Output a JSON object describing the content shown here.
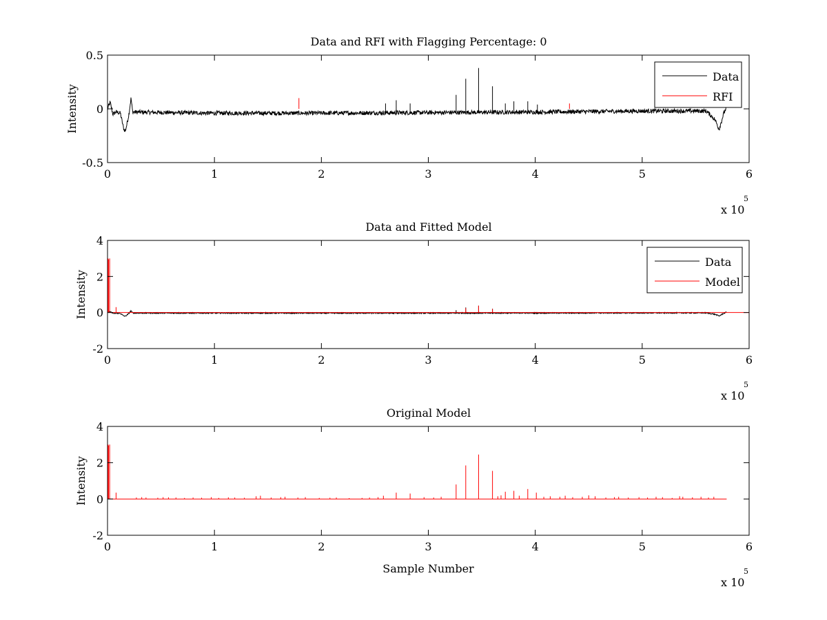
{
  "chart_data": [
    {
      "type": "line",
      "title": "Data and RFI with Flagging Percentage: 0",
      "xlabel": "",
      "ylabel": "Intensity",
      "xlim": [
        0,
        600000
      ],
      "ylim": [
        -0.5,
        0.5
      ],
      "xticks": [
        0,
        100000,
        200000,
        300000,
        400000,
        500000,
        600000
      ],
      "xtick_labels": [
        "0",
        "1",
        "2",
        "3",
        "4",
        "5",
        "6"
      ],
      "yticks": [
        -0.5,
        0,
        0.5
      ],
      "ytick_labels": [
        "-0.5",
        "0",
        "0.5"
      ],
      "x_multiplier_base": "x 10",
      "x_multiplier_exp": "5",
      "legend_position": "top-right",
      "series": [
        {
          "name": "Data",
          "color": "#000000",
          "noise_amplitude": 0.02,
          "baseline": -0.04,
          "points": [
            [
              0,
              0.0
            ],
            [
              2500,
              0.06
            ],
            [
              5000,
              -0.05
            ],
            [
              8000,
              -0.03
            ],
            [
              12000,
              -0.04
            ],
            [
              15000,
              -0.18
            ],
            [
              16500,
              -0.21
            ],
            [
              18000,
              -0.15
            ],
            [
              20000,
              -0.05
            ],
            [
              22000,
              0.1
            ],
            [
              23500,
              -0.03
            ],
            [
              100000,
              -0.04
            ],
            [
              200000,
              -0.04
            ],
            [
              300000,
              -0.035
            ],
            [
              400000,
              -0.03
            ],
            [
              500000,
              -0.02
            ],
            [
              560000,
              -0.02
            ],
            [
              568000,
              -0.1
            ],
            [
              572000,
              -0.19
            ],
            [
              576000,
              -0.05
            ],
            [
              579000,
              0.02
            ]
          ],
          "spikes": [
            [
              260000,
              0.05
            ],
            [
              270000,
              0.08
            ],
            [
              283000,
              0.05
            ],
            [
              326000,
              0.13
            ],
            [
              335000,
              0.28
            ],
            [
              347000,
              0.38
            ],
            [
              360000,
              0.21
            ],
            [
              372000,
              0.05
            ],
            [
              380000,
              0.07
            ],
            [
              393000,
              0.07
            ],
            [
              402000,
              0.04
            ]
          ]
        },
        {
          "name": "RFI",
          "color": "#ff0000",
          "spikes": [
            [
              179000,
              0.1
            ],
            [
              432000,
              0.05
            ]
          ]
        }
      ]
    },
    {
      "type": "line",
      "title": "Data and Fitted Model",
      "xlabel": "",
      "ylabel": "Intensity",
      "xlim": [
        0,
        600000
      ],
      "ylim": [
        -2,
        4
      ],
      "xticks": [
        0,
        100000,
        200000,
        300000,
        400000,
        500000,
        600000
      ],
      "xtick_labels": [
        "0",
        "1",
        "2",
        "3",
        "4",
        "5",
        "6"
      ],
      "yticks": [
        -2,
        0,
        2,
        4
      ],
      "ytick_labels": [
        "-2",
        "0",
        "2",
        "4"
      ],
      "x_multiplier_base": "x 10",
      "x_multiplier_exp": "5",
      "legend_position": "top-right",
      "series": [
        {
          "name": "Data",
          "color": "#000000",
          "noise_amplitude": 0.03,
          "baseline": -0.04,
          "points": [
            [
              0,
              0.0
            ],
            [
              2500,
              0.06
            ],
            [
              5000,
              -0.05
            ],
            [
              12000,
              -0.05
            ],
            [
              15000,
              -0.18
            ],
            [
              16500,
              -0.21
            ],
            [
              18000,
              -0.15
            ],
            [
              20000,
              -0.05
            ],
            [
              22000,
              0.1
            ],
            [
              23500,
              -0.03
            ],
            [
              300000,
              -0.035
            ],
            [
              560000,
              -0.02
            ],
            [
              568000,
              -0.1
            ],
            [
              572000,
              -0.19
            ],
            [
              576000,
              -0.05
            ],
            [
              579000,
              0.02
            ]
          ],
          "spikes": [
            [
              326000,
              0.13
            ],
            [
              335000,
              0.28
            ],
            [
              347000,
              0.38
            ],
            [
              360000,
              0.21
            ]
          ]
        },
        {
          "name": "Model",
          "color": "#ff0000",
          "baseline": 0.0,
          "spikes": [
            [
              500,
              3.0
            ],
            [
              1000,
              2.95
            ],
            [
              2000,
              3.0
            ],
            [
              8000,
              0.3
            ],
            [
              335000,
              0.25
            ],
            [
              347000,
              0.38
            ],
            [
              360000,
              0.2
            ]
          ]
        }
      ]
    },
    {
      "type": "line",
      "title": "Original Model",
      "xlabel": "Sample Number",
      "ylabel": "Intensity",
      "xlim": [
        0,
        600000
      ],
      "ylim": [
        -2,
        4
      ],
      "xticks": [
        0,
        100000,
        200000,
        300000,
        400000,
        500000,
        600000
      ],
      "xtick_labels": [
        "0",
        "1",
        "2",
        "3",
        "4",
        "5",
        "6"
      ],
      "yticks": [
        -2,
        0,
        2,
        4
      ],
      "ytick_labels": [
        "-2",
        "0",
        "2",
        "4"
      ],
      "x_multiplier_base": "x 10",
      "x_multiplier_exp": "5",
      "series": [
        {
          "color": "#ff0000",
          "baseline": 0.0,
          "x_end": 579000,
          "spikes": [
            [
              500,
              3.0
            ],
            [
              1000,
              2.95
            ],
            [
              2000,
              3.0
            ],
            [
              8000,
              0.35
            ],
            [
              27000,
              0.08
            ],
            [
              32000,
              0.1
            ],
            [
              36000,
              0.08
            ],
            [
              47000,
              0.07
            ],
            [
              52000,
              0.1
            ],
            [
              57000,
              0.09
            ],
            [
              64000,
              0.08
            ],
            [
              72000,
              0.06
            ],
            [
              80000,
              0.08
            ],
            [
              88000,
              0.07
            ],
            [
              97000,
              0.1
            ],
            [
              104000,
              0.06
            ],
            [
              113000,
              0.09
            ],
            [
              119000,
              0.08
            ],
            [
              128000,
              0.07
            ],
            [
              139000,
              0.15
            ],
            [
              143000,
              0.18
            ],
            [
              153000,
              0.08
            ],
            [
              162000,
              0.1
            ],
            [
              166000,
              0.12
            ],
            [
              178000,
              0.08
            ],
            [
              185000,
              0.1
            ],
            [
              198000,
              0.06
            ],
            [
              208000,
              0.07
            ],
            [
              214000,
              0.08
            ],
            [
              226000,
              0.05
            ],
            [
              238000,
              0.06
            ],
            [
              245000,
              0.08
            ],
            [
              253000,
              0.1
            ],
            [
              258000,
              0.18
            ],
            [
              270000,
              0.35
            ],
            [
              283000,
              0.3
            ],
            [
              296000,
              0.1
            ],
            [
              305000,
              0.08
            ],
            [
              312000,
              0.12
            ],
            [
              326000,
              0.8
            ],
            [
              335000,
              1.85
            ],
            [
              347000,
              2.45
            ],
            [
              360000,
              1.55
            ],
            [
              365000,
              0.15
            ],
            [
              368000,
              0.2
            ],
            [
              372000,
              0.4
            ],
            [
              380000,
              0.45
            ],
            [
              385000,
              0.18
            ],
            [
              393000,
              0.55
            ],
            [
              401000,
              0.35
            ],
            [
              408000,
              0.12
            ],
            [
              414000,
              0.15
            ],
            [
              423000,
              0.12
            ],
            [
              428000,
              0.18
            ],
            [
              435000,
              0.1
            ],
            [
              444000,
              0.12
            ],
            [
              450000,
              0.2
            ],
            [
              456000,
              0.15
            ],
            [
              466000,
              0.08
            ],
            [
              474000,
              0.1
            ],
            [
              478000,
              0.12
            ],
            [
              487000,
              0.08
            ],
            [
              497000,
              0.1
            ],
            [
              505000,
              0.08
            ],
            [
              513000,
              0.12
            ],
            [
              519000,
              0.1
            ],
            [
              528000,
              0.06
            ],
            [
              535000,
              0.15
            ],
            [
              538000,
              0.12
            ],
            [
              547000,
              0.09
            ],
            [
              555000,
              0.12
            ],
            [
              562000,
              0.08
            ],
            [
              567000,
              0.12
            ]
          ]
        }
      ]
    }
  ]
}
